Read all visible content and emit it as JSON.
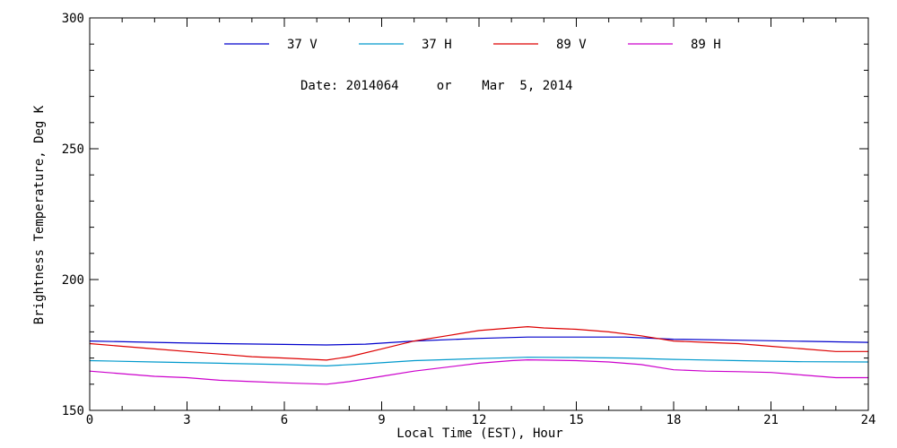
{
  "chart_data": {
    "type": "line",
    "title": "",
    "xlabel": "Local Time (EST), Hour",
    "ylabel": "Brightness Temperature, Deg K",
    "xlim": [
      0,
      24
    ],
    "ylim": [
      150,
      300
    ],
    "x_ticks": [
      0,
      3,
      6,
      9,
      12,
      15,
      18,
      21,
      24
    ],
    "y_ticks": [
      150,
      200,
      250,
      300
    ],
    "x_minor_step": 1,
    "y_minor_step": 10,
    "grid": false,
    "legend_position": "top",
    "annotation": "Date: 2014064     or    Mar  5, 2014",
    "series": [
      {
        "name": "37 V",
        "color": "#0000cc",
        "x": [
          0,
          2,
          4,
          6,
          7.3,
          8.5,
          10,
          12,
          13.5,
          15,
          16.5,
          18,
          20,
          22,
          24
        ],
        "y": [
          176.5,
          176,
          175.5,
          175.2,
          175,
          175.3,
          176.5,
          177.5,
          178,
          178,
          178,
          177.2,
          176.8,
          176.4,
          176
        ]
      },
      {
        "name": "37 H",
        "color": "#0099cc",
        "x": [
          0,
          2,
          4,
          6,
          7.3,
          8.5,
          10,
          12,
          13.5,
          15,
          16.5,
          18,
          20,
          22,
          24
        ],
        "y": [
          169,
          168.5,
          168,
          167.5,
          167,
          167.8,
          169,
          169.8,
          170.3,
          170.2,
          170,
          169.5,
          169,
          168.6,
          168.5
        ]
      },
      {
        "name": "89 V",
        "color": "#dd0000",
        "x": [
          0,
          1,
          2,
          3,
          4,
          5,
          6,
          7.3,
          8,
          9,
          10,
          11,
          12,
          13,
          13.5,
          14,
          15,
          16,
          17,
          18,
          19,
          20,
          21,
          22,
          23,
          24
        ],
        "y": [
          175.5,
          174.5,
          173.5,
          172.5,
          171.5,
          170.5,
          170,
          169.2,
          170.5,
          173.5,
          176.5,
          178.5,
          180.5,
          181.5,
          182,
          181.5,
          181,
          180,
          178.5,
          176.5,
          176,
          175.5,
          174.5,
          173.5,
          172.5,
          172.5
        ]
      },
      {
        "name": "89 H",
        "color": "#cc00cc",
        "x": [
          0,
          1,
          2,
          3,
          4,
          5,
          6,
          7.3,
          8,
          9,
          10,
          11,
          12,
          13,
          13.5,
          14,
          15,
          16,
          17,
          18,
          19,
          20,
          21,
          22,
          23,
          24
        ],
        "y": [
          165,
          164,
          163,
          162.5,
          161.5,
          161,
          160.5,
          160,
          161,
          163,
          165,
          166.5,
          168,
          169,
          169.3,
          169.2,
          169,
          168.5,
          167.5,
          165.5,
          165,
          164.8,
          164.5,
          163.5,
          162.5,
          162.5
        ]
      }
    ]
  }
}
